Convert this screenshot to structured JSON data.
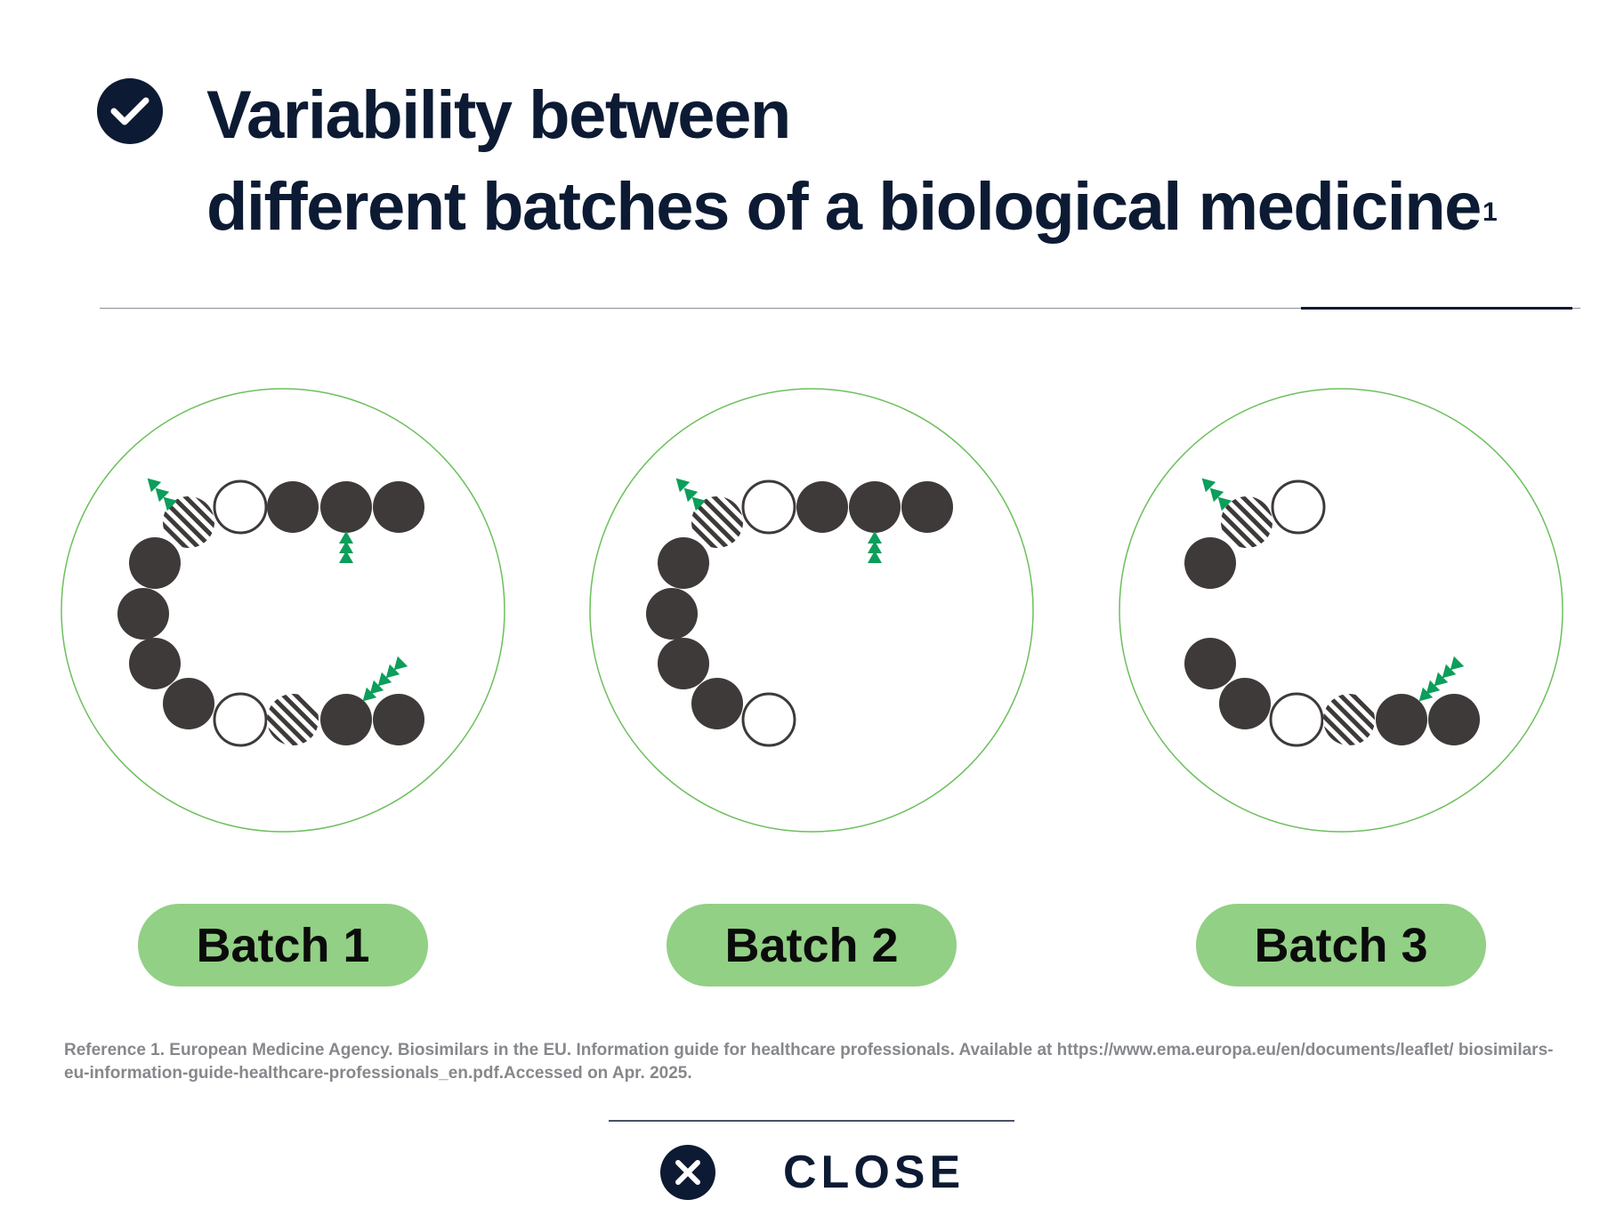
{
  "header": {
    "title_line1": "Variability between",
    "title_line2": "different batches of a biological medicine",
    "title_superscript": "1",
    "icon": "check-circle-icon"
  },
  "batches": [
    {
      "label": "Batch 1",
      "top_row_left_to_right": [
        "hatched",
        "open",
        "filled",
        "filled",
        "filled"
      ],
      "left_arc_top_to_bottom": [
        "filled",
        "filled",
        "filled",
        "filled"
      ],
      "bottom_row_left_to_right": [
        "open",
        "hatched",
        "filled",
        "filled"
      ],
      "marker_arrows": 3
    },
    {
      "label": "Batch 2",
      "top_row_left_to_right": [
        "hatched",
        "open",
        "filled",
        "filled",
        "filled"
      ],
      "left_arc_top_to_bottom": [
        "filled",
        "filled",
        "filled",
        "filled"
      ],
      "bottom_row_left_to_right": [
        "open"
      ],
      "marker_arrows": 2
    },
    {
      "label": "Batch 3",
      "top_row_left_to_right": [
        "hatched",
        "open"
      ],
      "left_arc_top_to_bottom": [
        "filled",
        "filled",
        "filled"
      ],
      "bottom_row_left_to_right": [
        "open",
        "hatched",
        "filled",
        "filled"
      ],
      "marker_arrows": 2
    }
  ],
  "reference_text": "Reference 1. European Medicine Agency. Biosimilars in the EU. Information guide for healthcare professionals. Available at https://www.ema.europa.eu/en/documents/leaflet/ biosimilars-eu-information-guide-healthcare-professionals_en.pdf.Accessed on Apr. 2025.",
  "close": {
    "label": "CLOSE",
    "icon": "close-icon"
  },
  "colors": {
    "navy": "#0c1b33",
    "bead_dark": "#3e3a39",
    "circle_outline": "#6cc05c",
    "marker_green": "#0c9e5b",
    "pill_green": "#92d085",
    "reference_gray": "#86888c"
  }
}
